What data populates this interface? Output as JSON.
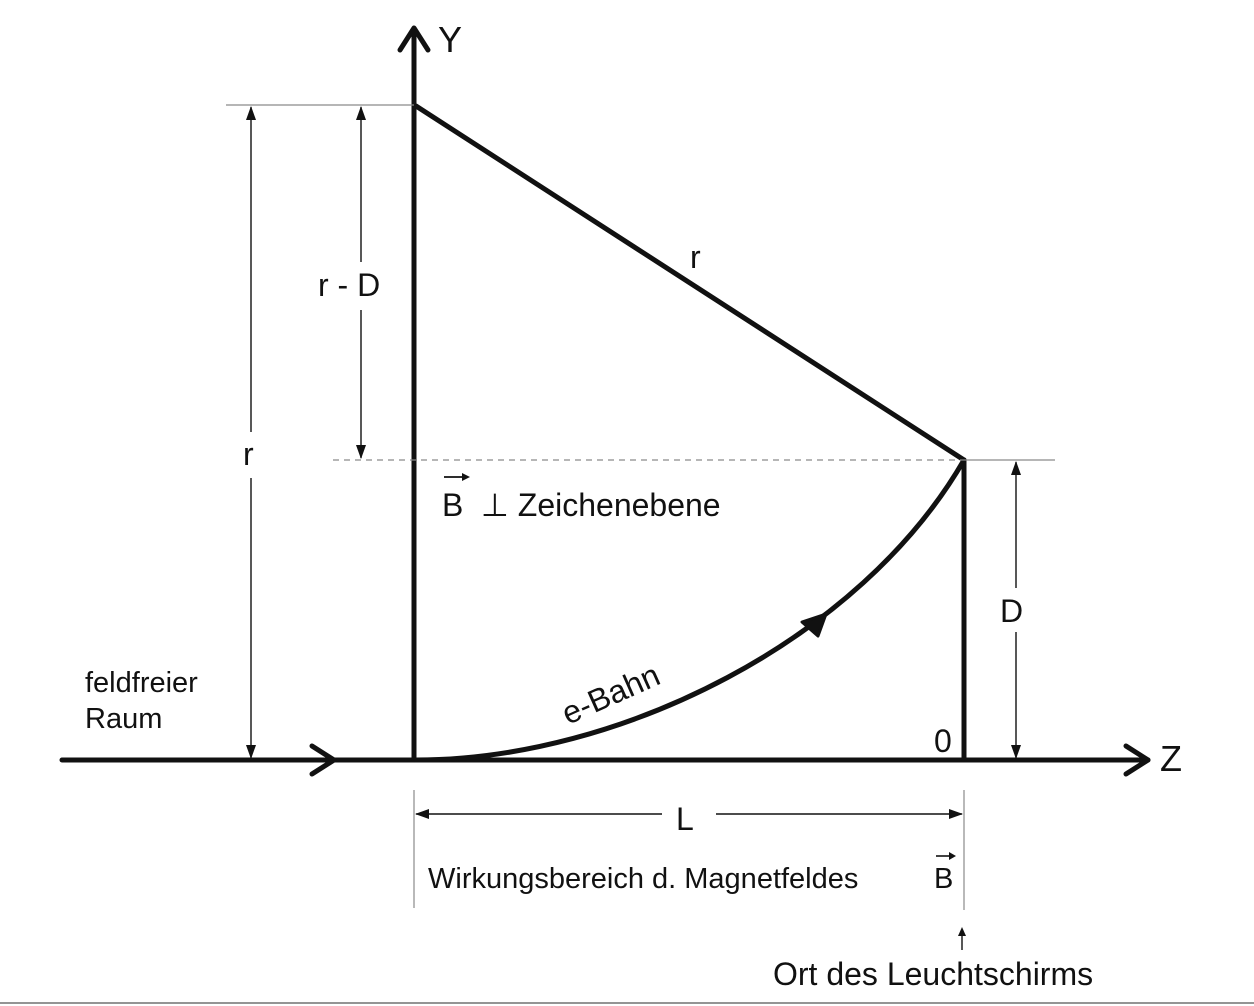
{
  "labels": {
    "y_axis": "Y",
    "z_axis": "Z",
    "radius_hypotenuse": "r",
    "radius_vertical": "r",
    "r_minus_d": "r - D",
    "field_direction": "B ⊥ Zeichenebene",
    "field_symbol": "B",
    "field_text": "⊥ Zeichenebene",
    "deflection": "D",
    "origin": "0",
    "length": "L",
    "electron_path": "e-Bahn",
    "field_free_space_line1": "feldfreier",
    "field_free_space_line2": "Raum",
    "field_region": "Wirkungsbereich d. Magnetfeldes",
    "field_region_symbol": "B",
    "screen_position": "Ort des Leuchtschirms"
  },
  "colors": {
    "ink": "#111111",
    "guide": "#8a8a8a",
    "background": "#ffffff"
  }
}
